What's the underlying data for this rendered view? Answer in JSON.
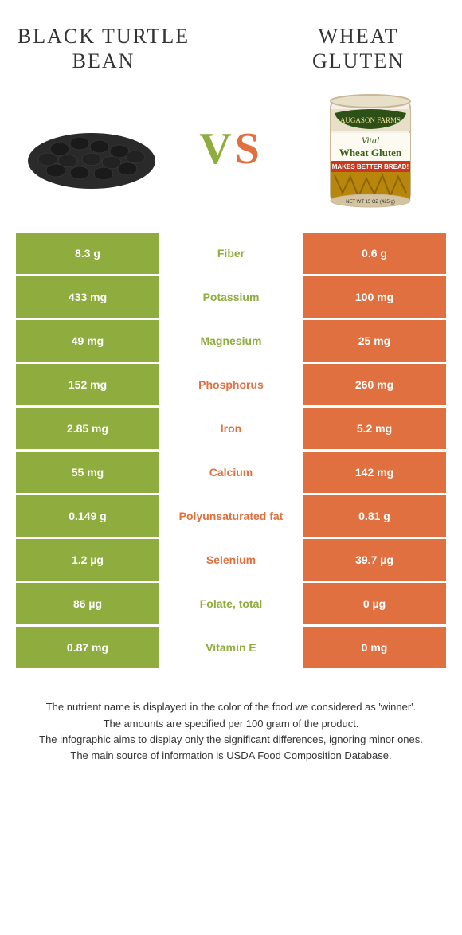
{
  "colors": {
    "green": "#8fac3e",
    "orange": "#e0703f",
    "text": "#333333",
    "bg": "#ffffff"
  },
  "left_title": "BLACK TURTLE BEAN",
  "right_title": "WHEAT GLUTEN",
  "vs_v": "V",
  "vs_s": "S",
  "rows": [
    {
      "left": "8.3 g",
      "mid": "Fiber",
      "right": "0.6 g",
      "winner": "green"
    },
    {
      "left": "433 mg",
      "mid": "Potassium",
      "right": "100 mg",
      "winner": "green"
    },
    {
      "left": "49 mg",
      "mid": "Magnesium",
      "right": "25 mg",
      "winner": "green"
    },
    {
      "left": "152 mg",
      "mid": "Phosphorus",
      "right": "260 mg",
      "winner": "orange"
    },
    {
      "left": "2.85 mg",
      "mid": "Iron",
      "right": "5.2 mg",
      "winner": "orange"
    },
    {
      "left": "55 mg",
      "mid": "Calcium",
      "right": "142 mg",
      "winner": "orange"
    },
    {
      "left": "0.149 g",
      "mid": "Polyunsaturated fat",
      "right": "0.81 g",
      "winner": "orange"
    },
    {
      "left": "1.2 µg",
      "mid": "Selenium",
      "right": "39.7 µg",
      "winner": "orange"
    },
    {
      "left": "86 µg",
      "mid": "Folate, total",
      "right": "0 µg",
      "winner": "green"
    },
    {
      "left": "0.87 mg",
      "mid": "Vitamin E",
      "right": "0 mg",
      "winner": "green"
    }
  ],
  "footer": [
    "The nutrient name is displayed in the color of the food we considered as 'winner'.",
    "The amounts are specified per 100 gram of the product.",
    "The infographic aims to display only the significant differences, ignoring minor ones.",
    "The main source of information is USDA Food Composition Database."
  ]
}
